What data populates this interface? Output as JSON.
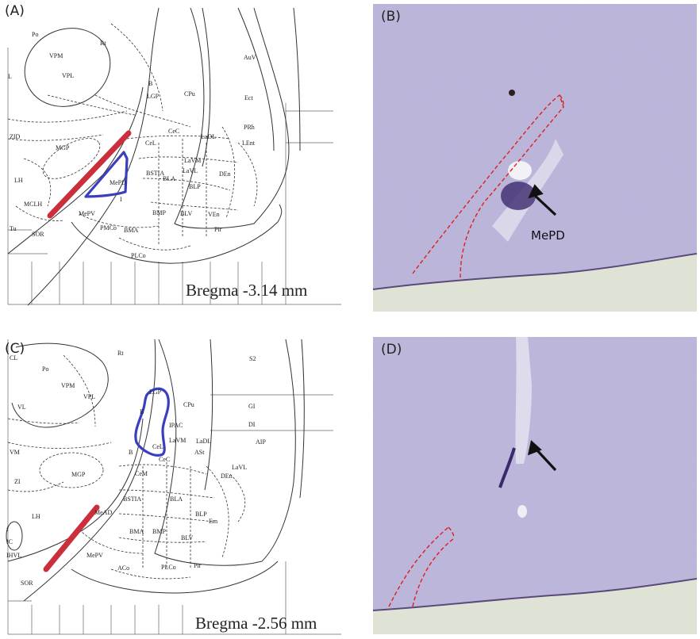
{
  "panels": {
    "A": {
      "letter": "(A)",
      "bregma": "Bregma -3.14 mm",
      "labels": [
        "Po",
        "VPM",
        "Rt",
        "VPL",
        "L",
        "B",
        "LGP",
        "CPu",
        "AuV",
        "Ect",
        "PRh",
        "LEnt",
        "ZID",
        "MGP",
        "CeC",
        "CeL",
        "LaDL",
        "LaVM",
        "LaVL",
        "BSTIA",
        "BLA",
        "BLP",
        "DEn",
        "LH",
        "MePD",
        "MCLH",
        "MePV",
        "I",
        "BMP",
        "BLV",
        "VEn",
        "Tu",
        "PMCo",
        "BMA",
        "Pir",
        "SOR",
        "PLCo"
      ]
    },
    "B": {
      "letter": "(B)",
      "annotation": "MePD"
    },
    "C": {
      "letter": "(C)",
      "bregma": "Bregma -2.56 mm",
      "labels": [
        "CL",
        "Po",
        "Rt",
        "S2",
        "VPM",
        "VPL",
        "VL",
        "CPu",
        "GI",
        "LGP",
        "DI",
        "B",
        "IPAC",
        "VM",
        "LaVM",
        "AIP",
        "B",
        "LaDL",
        "ZI",
        "MGP",
        "CeL",
        "CeC",
        "ASt",
        "LaVL",
        "DEn",
        "CeM",
        "LH",
        "BSTIA",
        "BLA",
        "BLP",
        "Em",
        "MeAD",
        "f",
        "IC",
        "BMA",
        "BMP",
        "BLV",
        "IHVL",
        "MePV",
        "ACo",
        "PLCo",
        "Pir",
        "SOR"
      ]
    },
    "D": {
      "letter": "(D)"
    }
  },
  "colors": {
    "outline_blue": "#3a3fbf",
    "lesion_red": "#cc2f3c",
    "trace_red": "#e01e1e",
    "tissue": "#b9b4d6"
  }
}
